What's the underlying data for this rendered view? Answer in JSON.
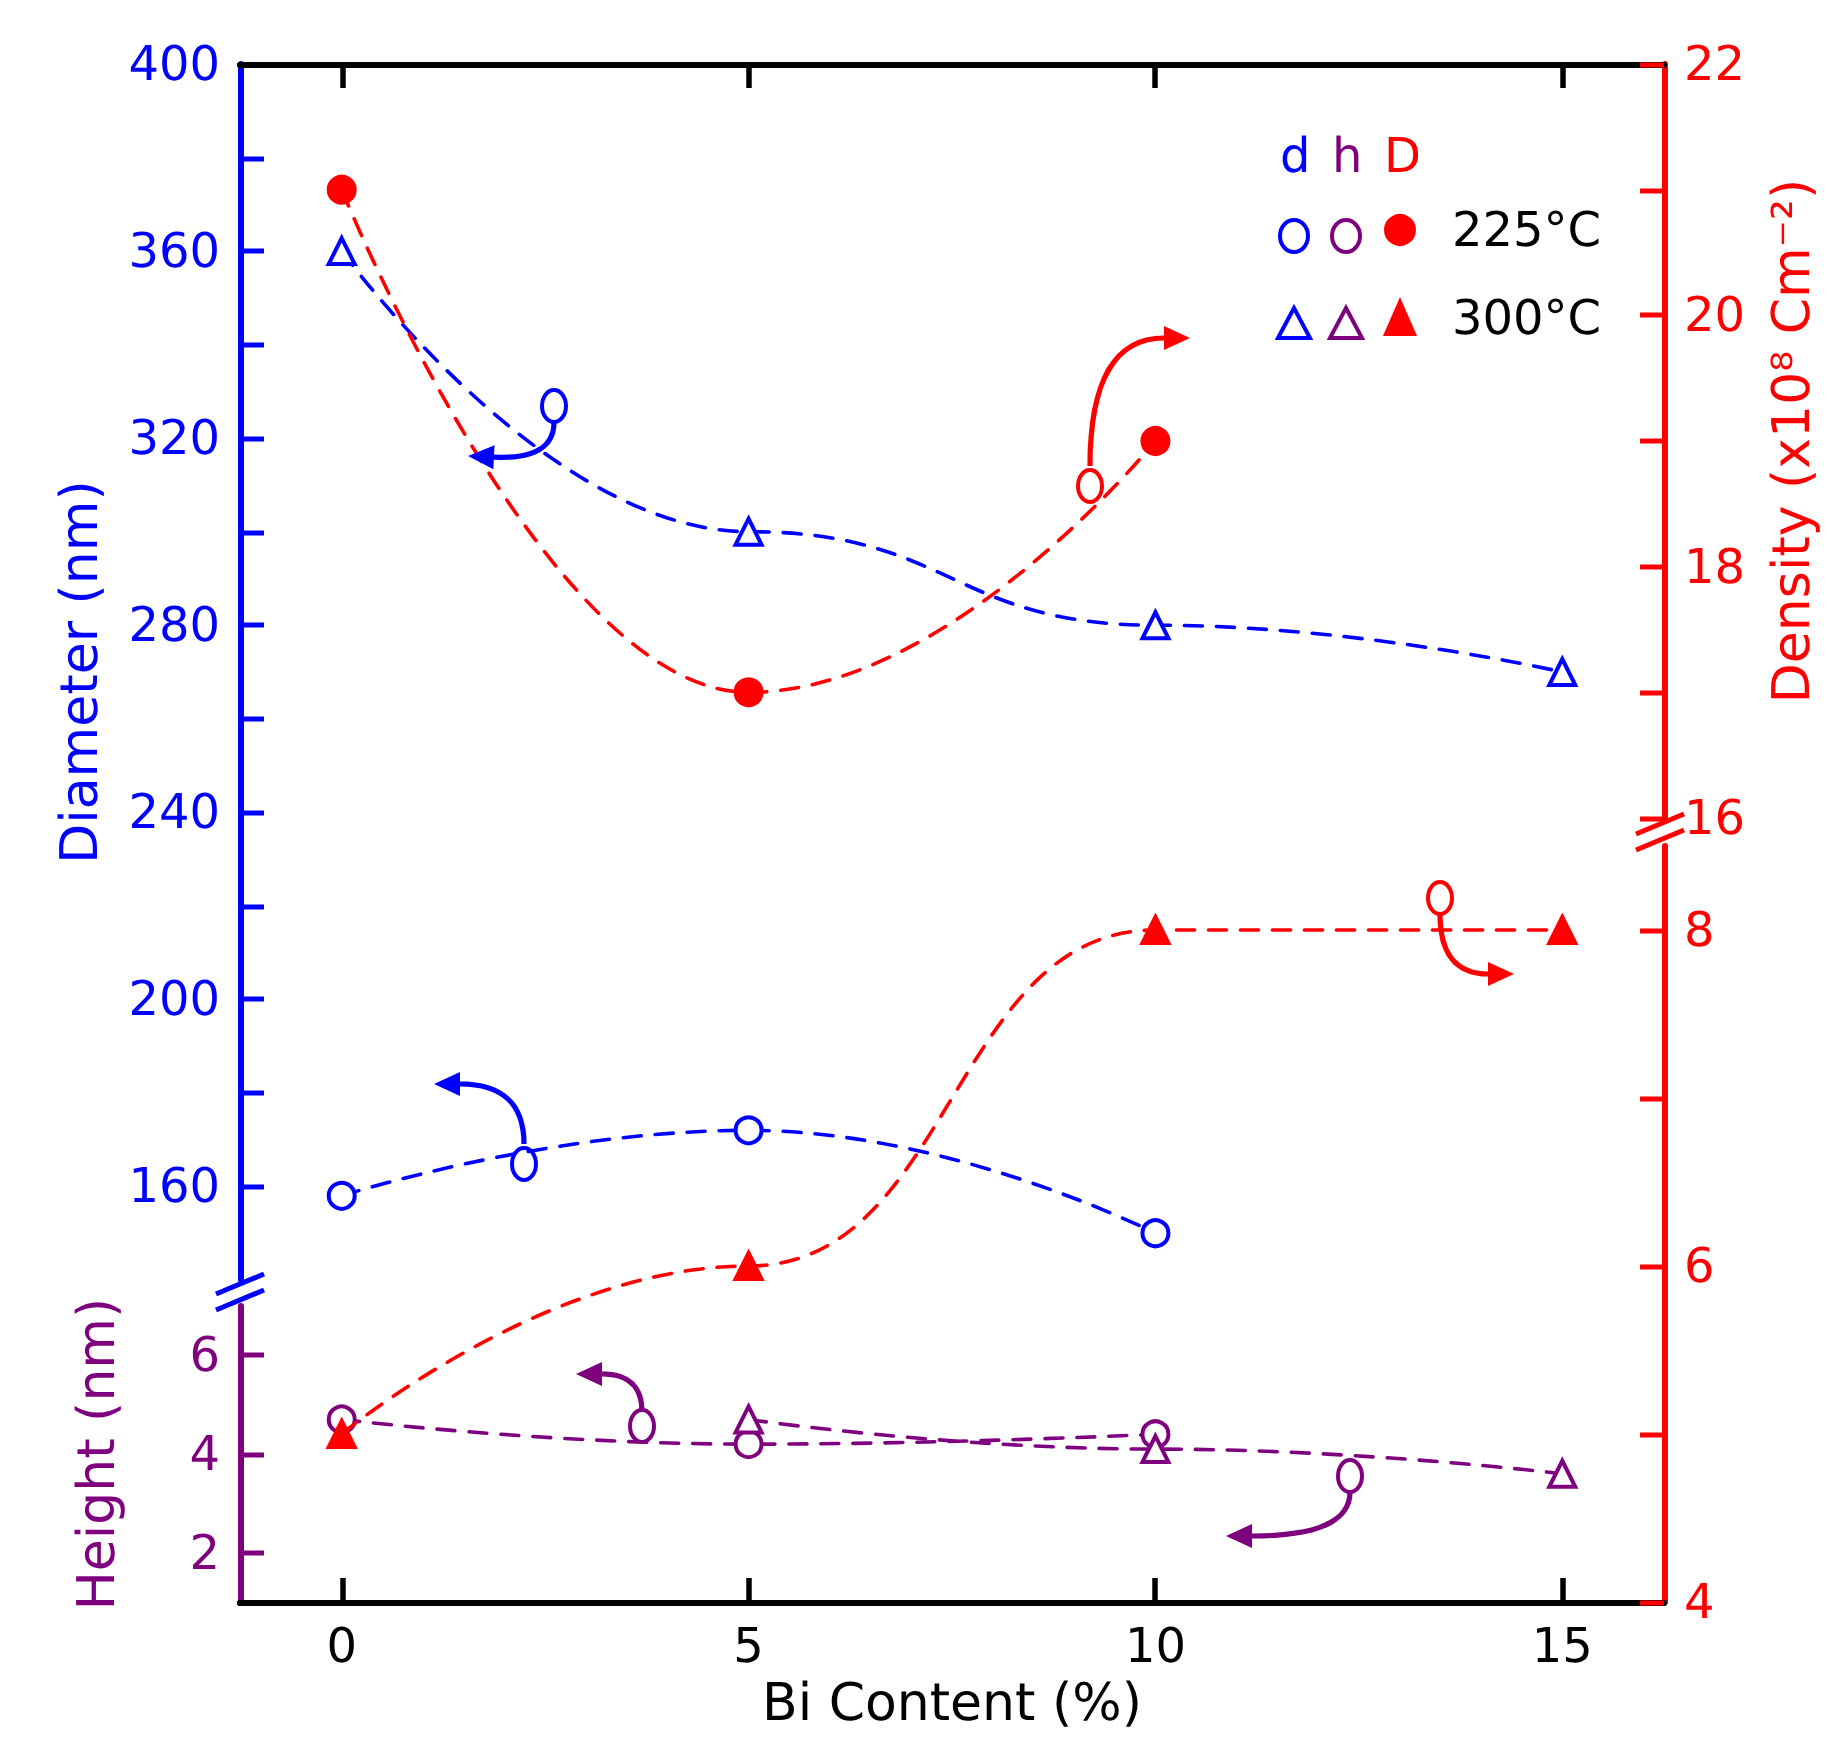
{
  "chart_data": [
    {
      "type": "line",
      "ylabel": "Diameter (nm)",
      "annotations": [
        "d"
      ],
      "line_style": "dashed",
      "tick_labels": "y",
      "xlim": [
        -1.25,
        16.25
      ],
      "xticks": [
        0,
        5,
        10,
        15
      ],
      "ylim": [
        140,
        400
      ],
      "yticks": [
        160,
        {
          "value": 180,
          "label": null
        },
        200,
        {
          "value": 220,
          "label": null
        },
        240,
        {
          "value": 260,
          "label": null
        },
        280,
        {
          "value": 300,
          "label": null
        },
        320,
        {
          "value": 340,
          "label": null
        },
        360,
        {
          "value": 380,
          "label": null
        },
        400
      ],
      "series": [
        {
          "color": "#0000ff",
          "marker": "circle",
          "x": [
            0,
            5,
            10
          ],
          "values": [
            158,
            172,
            150
          ]
        },
        {
          "color": "#0000ff",
          "marker": "triangle",
          "x": [
            0,
            5,
            10,
            15
          ],
          "values": [
            360,
            300,
            280,
            270
          ]
        }
      ]
    },
    {
      "type": "line",
      "xlabel": "Bi Content (%)",
      "ylabel": "Height (nm)",
      "annotations": [
        "h"
      ],
      "line_style": "dashed",
      "xlim": [
        -1.25,
        16.25
      ],
      "xticks": [
        0,
        5,
        10,
        15
      ],
      "ylim": [
        1,
        7
      ],
      "yticks": [
        2,
        4,
        6
      ],
      "series": [
        {
          "color": "#7f007f",
          "marker": "circle",
          "x": [
            0,
            5,
            10
          ],
          "values": [
            4.7,
            4.2,
            4.4
          ]
        },
        {
          "color": "#7f007f",
          "marker": "triangle",
          "x": [
            5,
            10,
            15
          ],
          "values": [
            4.7,
            4.1,
            3.6
          ]
        }
      ]
    },
    {
      "type": "line",
      "y2label": "Density (x10⁸ Cm⁻²)",
      "legend_title": "D",
      "legend": "top right",
      "line_style": "dashed",
      "tick_labels": "y",
      "xlim": [
        -1.25,
        16.25
      ],
      "xticks": [
        0,
        5,
        10,
        15
      ],
      "y2lim": [
        16,
        22
      ],
      "y2ticks": [
        16,
        {
          "value": 17,
          "label": null
        },
        18,
        {
          "value": 19,
          "label": null
        },
        20,
        {
          "value": 21,
          "label": null
        },
        22
      ],
      "series": [
        {
          "name": "225°C",
          "color": "#ff0000",
          "marker": "circle",
          "axis": "y2",
          "x": [
            0,
            5,
            10
          ],
          "values": [
            21.0,
            17.0,
            19.0
          ]
        }
      ]
    },
    {
      "type": "line",
      "legend": "top right",
      "line_style": "dashed",
      "tick_labels": "y",
      "xlim": [
        -1.25,
        16.25
      ],
      "xticks": [
        0,
        5,
        10,
        15
      ],
      "y2lim": [
        4,
        8.5
      ],
      "y2ticks": [
        4,
        {
          "value": 5,
          "label": null
        },
        6,
        {
          "value": 7,
          "label": null
        },
        8
      ],
      "series": [
        {
          "name": "300°C",
          "color": "#ff0000",
          "marker": "triangle",
          "axis": "y2",
          "x": [
            0,
            5,
            10,
            15
          ],
          "values": [
            5.0,
            6.0,
            8.0,
            8.0
          ]
        }
      ]
    }
  ]
}
